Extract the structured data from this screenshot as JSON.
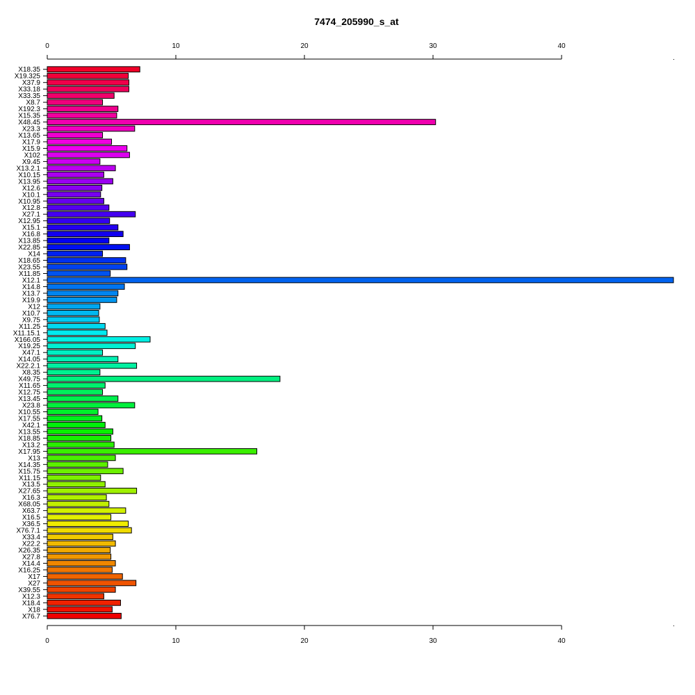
{
  "chart_data": {
    "type": "bar",
    "orientation": "horizontal",
    "title": "7474_205990_s_at",
    "xlabel": "",
    "ylabel": "",
    "xlim": [
      0,
      48.7
    ],
    "xticks": [
      0,
      10,
      20,
      30,
      40
    ],
    "axes": [
      "top",
      "bottom"
    ],
    "grid": false,
    "legend": "none",
    "colormap": "rainbow",
    "categories": [
      "X18.35",
      "X19.325",
      "X37.9",
      "X33.18",
      "X33.35",
      "X8.7",
      "X192.3",
      "X15.35",
      "X48.45",
      "X23.3",
      "X13.65",
      "X17.9",
      "X15.9",
      "X102",
      "X9.45",
      "X13.2.1",
      "X10.15",
      "X13.95",
      "X12.6",
      "X10.1",
      "X10.95",
      "X12.8",
      "X27.1",
      "X12.95",
      "X15.1",
      "X16.8",
      "X13.85",
      "X22.85",
      "X14",
      "X18.65",
      "X23.55",
      "X11.85",
      "X12.1",
      "X14.8",
      "X13.7",
      "X19.9",
      "X12",
      "X10.7",
      "X9.75",
      "X11.25",
      "X11.15.1",
      "X166.05",
      "X19.25",
      "X47.1",
      "X14.05",
      "X22.2.1",
      "X8.35",
      "X49.75",
      "X11.65",
      "X12.75",
      "X13.45",
      "X23.8",
      "X10.55",
      "X17.55",
      "X42.1",
      "X13.55",
      "X18.85",
      "X13.2",
      "X17.95",
      "X13",
      "X14.35",
      "X15.75",
      "X11.15",
      "X13.5",
      "X27.65",
      "X16.3",
      "X68.05",
      "X63.7",
      "X16.5",
      "X36.5",
      "X76.7.1",
      "X33.4",
      "X22.2",
      "X26.35",
      "X27.8",
      "X14.4",
      "X16.25",
      "X17",
      "X27",
      "X39.55",
      "X12.3",
      "X18.4",
      "X18",
      "X76.7"
    ],
    "values": [
      7.2,
      6.3,
      6.35,
      6.35,
      5.2,
      4.3,
      5.5,
      5.4,
      30.2,
      6.8,
      4.3,
      5.0,
      6.2,
      6.4,
      4.1,
      5.3,
      4.4,
      5.1,
      4.25,
      4.15,
      4.4,
      4.8,
      6.85,
      4.85,
      5.5,
      5.9,
      4.8,
      6.4,
      4.3,
      6.1,
      6.2,
      4.9,
      48.7,
      6.0,
      5.5,
      5.4,
      4.1,
      4.0,
      4.05,
      4.5,
      4.65,
      8.0,
      6.85,
      4.3,
      5.5,
      6.95,
      4.1,
      18.1,
      4.5,
      4.3,
      5.5,
      6.8,
      3.95,
      4.25,
      4.5,
      5.1,
      4.95,
      5.2,
      16.3,
      5.3,
      4.7,
      5.9,
      4.15,
      4.5,
      6.95,
      4.6,
      4.8,
      6.1,
      4.95,
      6.3,
      6.55,
      5.1,
      5.3,
      4.9,
      4.95,
      5.3,
      5.05,
      5.85,
      6.9,
      5.3,
      4.4,
      5.7,
      5.05,
      5.75
    ]
  }
}
